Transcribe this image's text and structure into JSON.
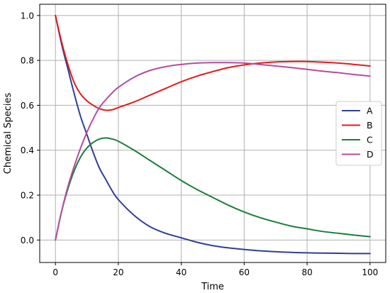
{
  "chart_data": {
    "type": "line",
    "xlabel": "Time",
    "ylabel": "Chemical Species",
    "xlim": [
      -5,
      105
    ],
    "ylim": [
      -0.1,
      1.05
    ],
    "xticks": [
      0,
      20,
      40,
      60,
      80,
      100
    ],
    "yticks": [
      0.0,
      0.2,
      0.4,
      0.6,
      0.8,
      1.0
    ],
    "xtick_labels": [
      "0",
      "20",
      "40",
      "60",
      "80",
      "100"
    ],
    "ytick_labels": [
      "0.0",
      "0.2",
      "0.4",
      "0.6",
      "0.8",
      "1.0"
    ],
    "grid": true,
    "legend_position": "center-right",
    "x": [
      0,
      2,
      4,
      6,
      8,
      10,
      12,
      14,
      16,
      18,
      20,
      25,
      30,
      35,
      40,
      45,
      50,
      55,
      60,
      65,
      70,
      75,
      80,
      85,
      90,
      95,
      100
    ],
    "series": [
      {
        "name": "A",
        "color": "#2f3f94",
        "values": [
          1.0,
          0.87,
          0.76,
          0.65,
          0.55,
          0.47,
          0.39,
          0.32,
          0.27,
          0.22,
          0.18,
          0.11,
          0.06,
          0.03,
          0.01,
          -0.01,
          -0.025,
          -0.035,
          -0.042,
          -0.048,
          -0.052,
          -0.055,
          -0.057,
          -0.058,
          -0.059,
          -0.06,
          -0.06
        ]
      },
      {
        "name": "B",
        "color": "#e41a1c",
        "values": [
          1.0,
          0.88,
          0.78,
          0.7,
          0.65,
          0.62,
          0.6,
          0.585,
          0.578,
          0.58,
          0.59,
          0.615,
          0.645,
          0.675,
          0.705,
          0.73,
          0.75,
          0.768,
          0.78,
          0.788,
          0.793,
          0.795,
          0.795,
          0.792,
          0.788,
          0.782,
          0.775
        ]
      },
      {
        "name": "C",
        "color": "#1b7d3f",
        "values": [
          0.0,
          0.13,
          0.23,
          0.31,
          0.37,
          0.41,
          0.435,
          0.45,
          0.455,
          0.45,
          0.44,
          0.4,
          0.355,
          0.31,
          0.265,
          0.225,
          0.19,
          0.155,
          0.125,
          0.1,
          0.08,
          0.062,
          0.05,
          0.038,
          0.03,
          0.022,
          0.015
        ]
      },
      {
        "name": "D",
        "color": "#b44ca0",
        "values": [
          0.0,
          0.13,
          0.24,
          0.33,
          0.41,
          0.48,
          0.54,
          0.59,
          0.625,
          0.655,
          0.68,
          0.725,
          0.755,
          0.772,
          0.782,
          0.788,
          0.79,
          0.79,
          0.788,
          0.782,
          0.775,
          0.768,
          0.76,
          0.752,
          0.745,
          0.737,
          0.73
        ]
      }
    ]
  }
}
